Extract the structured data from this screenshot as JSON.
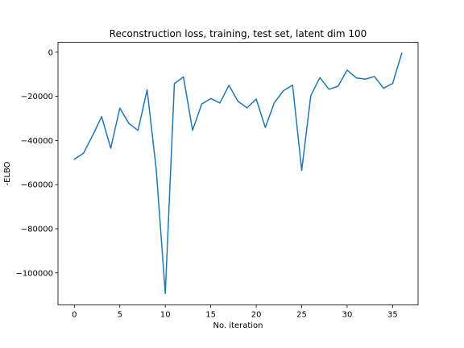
{
  "chart_data": {
    "type": "line",
    "title": "Reconstruction loss, training, test set, latent dim 100",
    "xlabel": "No. iteration",
    "ylabel": "-ELBO",
    "xlim": [
      -1.8,
      37.8
    ],
    "ylim": [
      -114500,
      4500
    ],
    "xticks": [
      0,
      5,
      10,
      15,
      20,
      25,
      30,
      35
    ],
    "yticks": [
      0,
      -20000,
      -40000,
      -60000,
      -80000,
      -100000
    ],
    "ytick_labels": [
      "0",
      "−20000",
      "−40000",
      "−60000",
      "−80000",
      "−100000"
    ],
    "grid": false,
    "series": [
      {
        "color": "#1f77b4",
        "x": [
          0,
          1,
          2,
          3,
          4,
          5,
          6,
          7,
          8,
          9,
          10,
          11,
          12,
          13,
          14,
          15,
          16,
          17,
          18,
          19,
          20,
          21,
          22,
          23,
          24,
          25,
          26,
          27,
          28,
          29,
          30,
          31,
          32,
          33,
          34,
          35,
          36
        ],
        "y": [
          -48500,
          -45800,
          -37800,
          -29200,
          -43500,
          -25300,
          -32300,
          -35400,
          -17000,
          -53000,
          -109300,
          -14200,
          -11200,
          -35400,
          -23500,
          -21000,
          -23000,
          -15000,
          -22300,
          -25200,
          -21200,
          -34100,
          -22800,
          -17400,
          -14900,
          -53600,
          -19700,
          -11500,
          -16800,
          -15400,
          -8100,
          -11600,
          -12200,
          -11000,
          -16300,
          -14200,
          -500
        ]
      }
    ]
  }
}
